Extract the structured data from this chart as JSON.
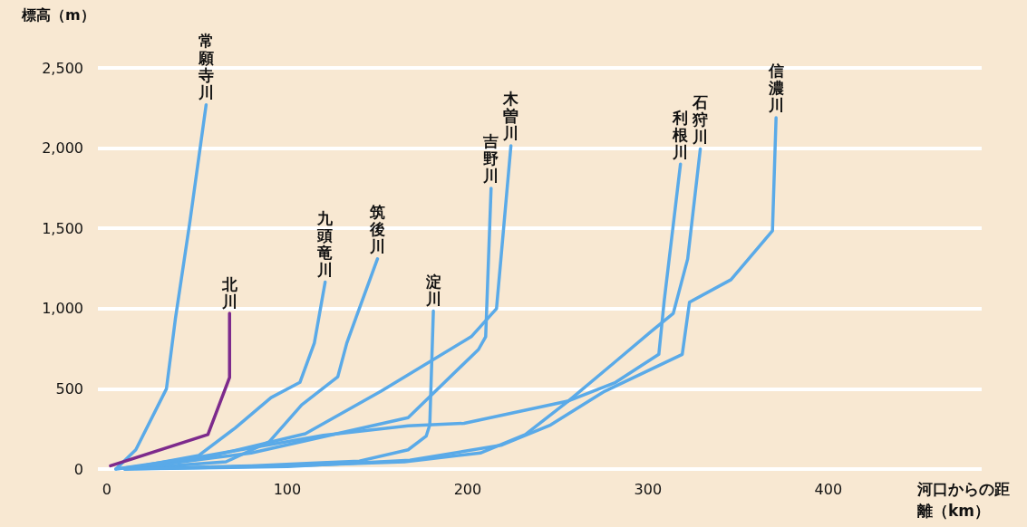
{
  "chart_data": {
    "type": "line",
    "ylabel": "標高（m）",
    "xlabel": "河口からの距離（km）",
    "xlim": [
      -5,
      485
    ],
    "ylim": [
      0,
      2500
    ],
    "xticks": [
      0,
      100,
      200,
      300,
      400
    ],
    "yticks": [
      0,
      500,
      {
        "value": 1000,
        "label": "1,000"
      },
      {
        "value": 1500,
        "label": "1,500"
      },
      {
        "value": 2000,
        "label": "2,000"
      },
      {
        "value": 2500,
        "label": "2,500"
      }
    ],
    "grid": "y",
    "legend": false,
    "marker": "none",
    "line_style": "solid",
    "series": [
      {
        "name": "常願寺川",
        "color": "#5aaae8",
        "x": [
          5,
          16,
          33,
          38,
          46,
          55
        ],
        "values": [
          0,
          120,
          500,
          940,
          1540,
          2270
        ]
      },
      {
        "name": "北川",
        "color": "#7d2a8c",
        "x": [
          2,
          56,
          68,
          68
        ],
        "values": [
          20,
          215,
          570,
          970
        ]
      },
      {
        "name": "九頭竜川",
        "color": "#5aaae8",
        "x": [
          10,
          51,
          71,
          91,
          107,
          115,
          121
        ],
        "values": [
          0,
          85,
          255,
          445,
          540,
          785,
          1165
        ]
      },
      {
        "name": "筑後川",
        "color": "#5aaae8",
        "x": [
          10,
          66,
          90,
          108,
          128,
          133,
          138,
          150
        ],
        "values": [
          0,
          45,
          170,
          400,
          575,
          785,
          940,
          1310
        ]
      },
      {
        "name": "淀川",
        "color": "#5aaae8",
        "x": [
          10,
          80,
          140,
          167,
          177,
          179,
          181
        ],
        "values": [
          0,
          20,
          50,
          120,
          205,
          275,
          985
        ]
      },
      {
        "name": "吉野川",
        "color": "#5aaae8",
        "x": [
          10,
          80,
          167,
          206,
          210,
          213
        ],
        "values": [
          0,
          100,
          320,
          745,
          825,
          1750
        ]
      },
      {
        "name": "木曽川",
        "color": "#5aaae8",
        "x": [
          5,
          50,
          110,
          152,
          202,
          216,
          224
        ],
        "values": [
          0,
          60,
          220,
          485,
          825,
          1000,
          2015
        ]
      },
      {
        "name": "利根川",
        "color": "#5aaae8",
        "x": [
          5,
          51,
          120,
          167,
          198,
          256,
          282,
          306,
          309,
          318
        ],
        "values": [
          0,
          75,
          210,
          270,
          285,
          425,
          540,
          715,
          1050,
          1900
        ]
      },
      {
        "name": "石狩川",
        "color": "#5aaae8",
        "x": [
          10,
          100,
          165,
          207,
          232,
          256,
          282,
          302,
          314,
          322,
          329
        ],
        "values": [
          0,
          20,
          45,
          100,
          215,
          425,
          670,
          860,
          970,
          1310,
          1995
        ]
      },
      {
        "name": "信濃川",
        "color": "#5aaae8",
        "x": [
          10,
          100,
          168,
          219,
          246,
          276,
          319,
          323,
          346,
          369,
          371
        ],
        "values": [
          0,
          15,
          55,
          150,
          275,
          485,
          715,
          1040,
          1180,
          1485,
          2190
        ]
      }
    ]
  }
}
